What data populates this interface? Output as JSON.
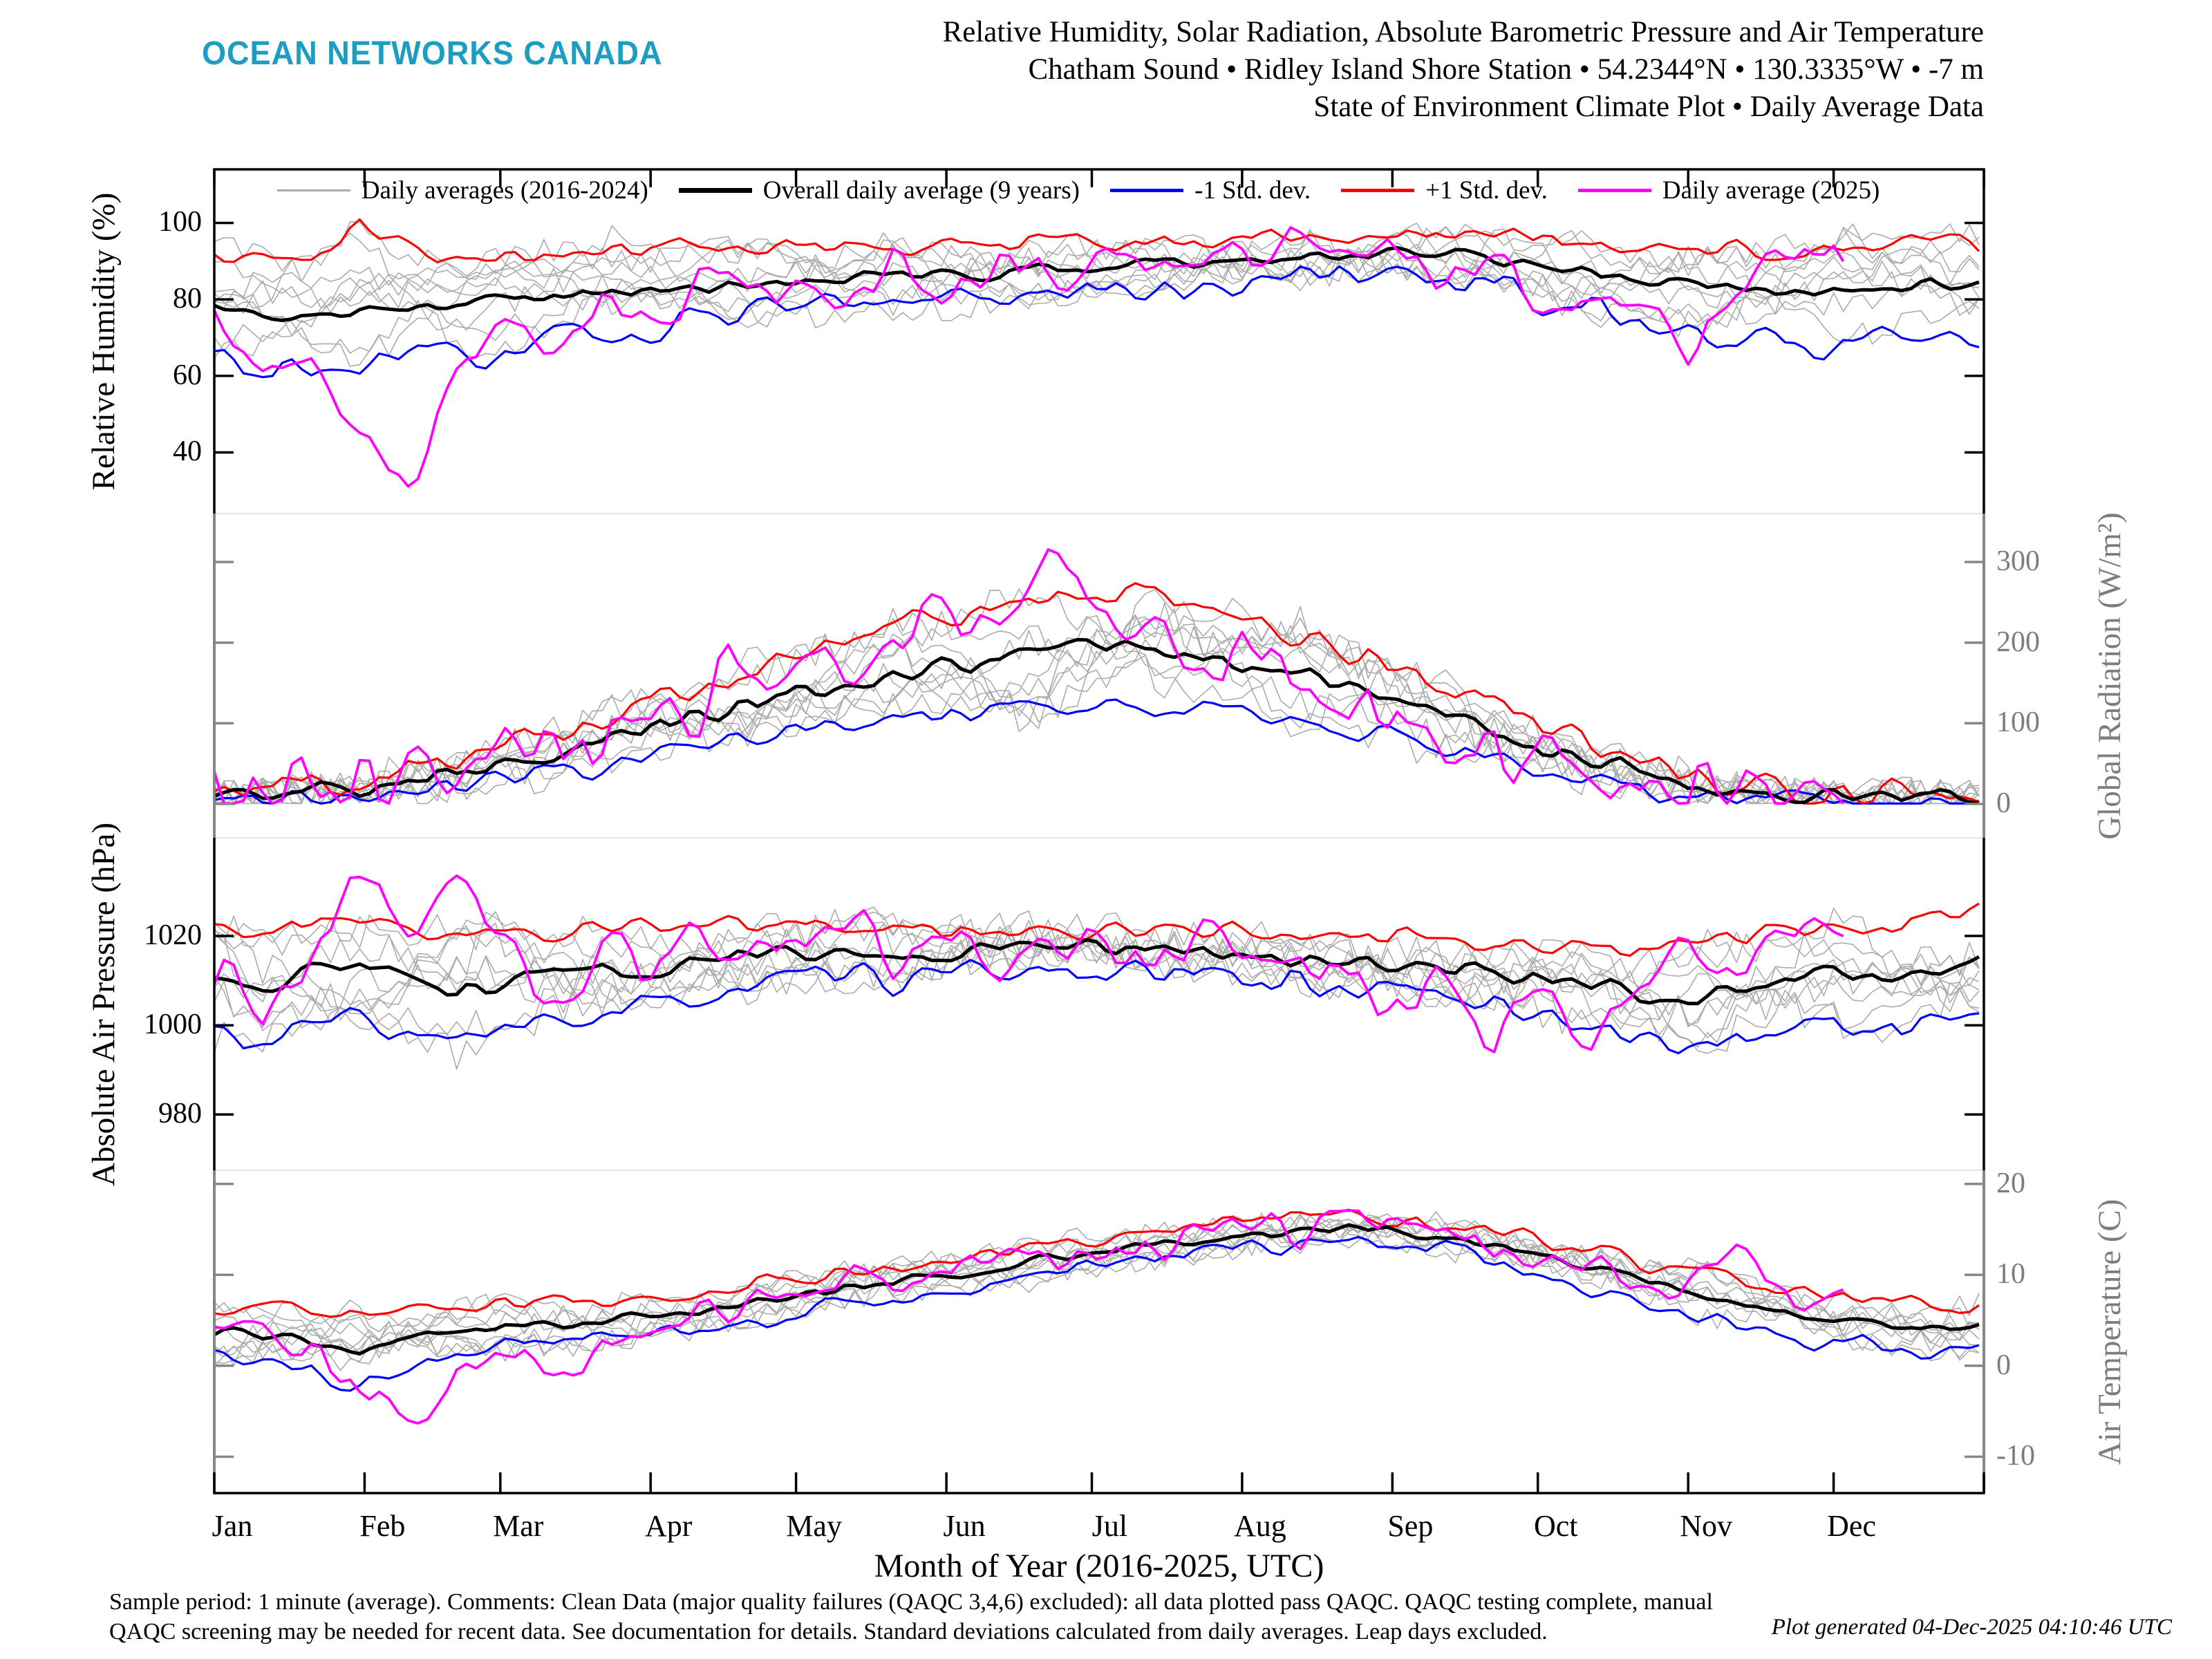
{
  "header": {
    "logo": "OCEAN NETWORKS CANADA",
    "logo_color": "#1d9dc1",
    "title_lines": [
      "Relative Humidity, Solar Radiation, Absolute Barometric Pressure and Air Temperature",
      "Chatham Sound • Ridley Island Shore Station • 54.2344°N • 130.3335°W • -7 m",
      "State of Environment Climate Plot • Daily Average Data"
    ]
  },
  "legend": {
    "items": [
      {
        "label": "Daily averages (2016-2024)",
        "color": "#ababab",
        "thickness": 3
      },
      {
        "label": "Overall daily average (9 years)",
        "color": "#000000",
        "thickness": 7
      },
      {
        "label": "-1 Std. dev.",
        "color": "#0000ff",
        "thickness": 5
      },
      {
        "label": "+1 Std. dev.",
        "color": "#ff0000",
        "thickness": 5
      },
      {
        "label": "Daily average (2025)",
        "color": "#ff00ff",
        "thickness": 5
      }
    ]
  },
  "xaxis": {
    "months": [
      "Jan",
      "Feb",
      "Mar",
      "Apr",
      "May",
      "Jun",
      "Jul",
      "Aug",
      "Sep",
      "Oct",
      "Nov",
      "Dec"
    ],
    "label": "Month of Year (2016-2025, UTC)"
  },
  "footer": {
    "line1": "Sample period: 1 minute (average). Comments: Clean Data (major quality failures (QAQC 3,4,6) excluded): all data plotted pass QAQC. QAQC testing complete, manual",
    "line2": "QAQC screening may be needed for recent data. See documentation for details. Standard deviations calculated from daily averages. Leap days excluded.",
    "generated": "Plot generated 04-Dec-2025 04:10:46 UTC"
  },
  "colors": {
    "axis_black": "#000000",
    "axis_gray": "#878787",
    "tick_label_gray": "#7d7d7d",
    "year_line_gray": "#ababab",
    "separator": "#e3e3e3"
  },
  "chart_data": [
    {
      "panel": "relative-humidity",
      "type": "line",
      "ylabel": "Relative Humidity (%)",
      "axis_side": "left",
      "axis_color": "#000000",
      "ylim": [
        24,
        114
      ],
      "yticks": [
        100,
        80,
        60,
        40
      ],
      "points_per_year": 37,
      "clamp": {
        "max": 100.3
      },
      "gray_years": {
        "label": "Daily averages (2016-2024)",
        "count": 9,
        "daily_noise": 3.5
      },
      "series": [
        {
          "role": "mean",
          "name": "Overall daily average (9 years)",
          "color": "#000000",
          "noise": 1.3,
          "values": [
            78,
            76,
            75,
            77,
            78,
            79,
            80,
            81,
            82,
            82,
            83,
            84,
            85,
            85,
            86,
            86,
            87,
            88,
            88,
            89,
            90,
            90,
            91,
            91,
            92,
            92,
            91,
            89,
            87,
            85,
            84,
            83,
            82,
            82,
            83,
            84,
            84
          ]
        },
        {
          "role": "minus1sd",
          "name": "-1 Std. dev.",
          "color": "#0000ff",
          "noise": 3.2,
          "values": [
            64,
            62,
            60,
            62,
            64,
            65,
            67,
            69,
            71,
            72,
            74,
            76,
            77,
            78,
            79,
            80,
            81,
            82,
            82,
            83,
            84,
            85,
            86,
            86,
            87,
            87,
            85,
            81,
            78,
            73,
            71,
            70,
            69,
            69,
            71,
            72,
            72
          ]
        },
        {
          "role": "plus1sd",
          "name": "+1 Std. dev.",
          "color": "#ff0000",
          "noise": 2.0,
          "values": [
            91,
            92,
            90,
            100,
            92,
            91,
            92,
            92,
            93,
            93,
            93,
            94,
            94,
            94,
            94,
            95,
            95,
            95,
            95,
            95,
            96,
            96,
            96,
            96,
            97,
            97,
            96,
            95,
            95,
            94,
            93,
            93,
            93,
            93,
            94,
            94,
            94
          ]
        },
        {
          "role": "current",
          "name": "Daily average (2025)",
          "color": "#ff00ff",
          "noise": 4.5,
          "end_fraction": 0.925,
          "values": [
            72,
            58,
            68,
            40,
            34,
            62,
            75,
            62,
            80,
            72,
            84,
            78,
            86,
            82,
            88,
            85,
            90,
            87,
            92,
            89,
            93,
            91,
            94,
            92,
            93,
            89,
            87,
            83,
            78,
            86,
            66,
            82,
            88,
            92,
            86,
            90,
            90
          ]
        }
      ]
    },
    {
      "panel": "global-radiation",
      "type": "line",
      "ylabel": "Global Radiation (W/m²)",
      "axis_side": "right",
      "axis_color": "#878787",
      "ylim": [
        -42,
        360
      ],
      "yticks": [
        300,
        200,
        100,
        0
      ],
      "points_per_year": 37,
      "clamp": {
        "min": 0.5
      },
      "gray_years": {
        "label": "Daily averages (2016-2024)",
        "count": 9,
        "daily_noise": 22
      },
      "series": [
        {
          "role": "mean",
          "name": "Overall daily average (9 years)",
          "color": "#000000",
          "noise": 9,
          "values": [
            10,
            12,
            15,
            20,
            28,
            38,
            50,
            62,
            78,
            95,
            110,
            125,
            140,
            150,
            160,
            170,
            180,
            190,
            195,
            190,
            180,
            170,
            158,
            145,
            128,
            108,
            88,
            68,
            52,
            38,
            26,
            18,
            12,
            9,
            8,
            8,
            8
          ]
        },
        {
          "role": "minus1sd",
          "name": "-1 Std. dev.",
          "color": "#0000ff",
          "noise": 10,
          "values": [
            5,
            6,
            8,
            11,
            15,
            22,
            30,
            38,
            48,
            60,
            72,
            82,
            95,
            100,
            105,
            112,
            118,
            125,
            128,
            125,
            118,
            112,
            104,
            95,
            84,
            68,
            55,
            42,
            32,
            22,
            15,
            10,
            7,
            5,
            4,
            4,
            4
          ]
        },
        {
          "role": "plus1sd",
          "name": "+1 Std. dev.",
          "color": "#ff0000",
          "noise": 14,
          "values": [
            14,
            17,
            22,
            30,
            42,
            55,
            72,
            88,
            108,
            128,
            148,
            168,
            188,
            205,
            218,
            232,
            245,
            258,
            262,
            255,
            242,
            228,
            212,
            195,
            172,
            148,
            120,
            95,
            72,
            52,
            36,
            25,
            17,
            13,
            11,
            11,
            11
          ]
        },
        {
          "role": "current",
          "name": "Daily average (2025)",
          "color": "#ff00ff",
          "noise": 38,
          "end_fraction": 0.925,
          "values": [
            11,
            13,
            17,
            25,
            35,
            45,
            60,
            75,
            95,
            115,
            135,
            155,
            175,
            190,
            205,
            220,
            240,
            265,
            240,
            230,
            210,
            190,
            168,
            148,
            122,
            98,
            76,
            56,
            40,
            28,
            18,
            12,
            9,
            7,
            7,
            7,
            7
          ]
        }
      ]
    },
    {
      "panel": "absolute-air-pressure",
      "type": "line",
      "ylabel": "Absolute Air Pressure (hPa)",
      "axis_side": "left",
      "axis_color": "#000000",
      "ylim": [
        967.5,
        1042
      ],
      "yticks": [
        1020,
        1000,
        980
      ],
      "points_per_year": 37,
      "gray_years": {
        "label": "Daily averages (2016-2024)",
        "count": 9,
        "daily_noise": 4
      },
      "series": [
        {
          "role": "mean",
          "name": "Overall daily average (9 years)",
          "color": "#000000",
          "noise": 1.6,
          "values": [
            1011,
            1008,
            1012,
            1013,
            1010,
            1008,
            1009,
            1011,
            1012,
            1013,
            1015,
            1016,
            1016,
            1017,
            1016,
            1016,
            1017,
            1017,
            1017,
            1016,
            1016,
            1016,
            1015,
            1014,
            1014,
            1013,
            1012,
            1011,
            1009,
            1007,
            1006,
            1008,
            1010,
            1012,
            1010,
            1013,
            1014
          ]
        },
        {
          "role": "minus1sd",
          "name": "-1 Std. dev.",
          "color": "#0000ff",
          "noise": 2.2,
          "values": [
            999,
            995,
            1000,
            1002,
            998,
            996,
            998,
            1001,
            1002,
            1004,
            1007,
            1009,
            1010,
            1011,
            1010,
            1011,
            1012,
            1012,
            1012,
            1011,
            1011,
            1011,
            1010,
            1008,
            1008,
            1007,
            1005,
            1003,
            1000,
            997,
            995,
            997,
            999,
            1001,
            998,
            1002,
            1003
          ]
        },
        {
          "role": "plus1sd",
          "name": "+1 Std. dev.",
          "color": "#ff0000",
          "noise": 1.8,
          "values": [
            1023,
            1021,
            1024,
            1024,
            1022,
            1020,
            1020,
            1021,
            1022,
            1022,
            1023,
            1023,
            1022,
            1023,
            1022,
            1021,
            1022,
            1022,
            1022,
            1021,
            1021,
            1021,
            1020,
            1020,
            1020,
            1019,
            1019,
            1019,
            1018,
            1017,
            1017,
            1019,
            1021,
            1023,
            1022,
            1024,
            1025
          ]
        },
        {
          "role": "current",
          "name": "Daily average (2025)",
          "color": "#ff00ff",
          "noise": 4.5,
          "end_fraction": 0.925,
          "values": [
            1013,
            1006,
            1018,
            1032,
            1024,
            1034,
            1015,
            1008,
            1016,
            1012,
            1019,
            1016,
            1018,
            1021,
            1015,
            1018,
            1016,
            1020,
            1018,
            1015,
            1018,
            1017,
            1014,
            1010,
            1002,
            1012,
            996,
            1010,
            993,
            1012,
            1018,
            1012,
            1020,
            1024,
            1019,
            1023,
            1023
          ]
        }
      ]
    },
    {
      "panel": "air-temperature",
      "type": "line",
      "ylabel": "Air Temperature (C)",
      "axis_side": "right",
      "axis_color": "#878787",
      "ylim": [
        -14,
        21.5
      ],
      "yticks": [
        20,
        10,
        0,
        -10
      ],
      "points_per_year": 37,
      "gray_years": {
        "label": "Daily averages (2016-2024)",
        "count": 9,
        "daily_noise": 1.3
      },
      "series": [
        {
          "role": "mean",
          "name": "Overall daily average (9 years)",
          "color": "#000000",
          "noise": 0.45,
          "values": [
            3.8,
            3.4,
            2.8,
            1.6,
            3.2,
            3.9,
            4.3,
            4.6,
            5.0,
            5.6,
            6.3,
            7.0,
            7.8,
            8.5,
            9.2,
            10.0,
            10.8,
            11.6,
            12.4,
            13.2,
            13.8,
            14.3,
            14.7,
            15.0,
            14.8,
            14.2,
            13.4,
            12.2,
            10.8,
            9.4,
            8.2,
            7.0,
            6.0,
            5.2,
            4.6,
            4.2,
            4.0
          ]
        },
        {
          "role": "minus1sd",
          "name": "-1 Std. dev.",
          "color": "#0000ff",
          "noise": 0.8,
          "values": [
            1.3,
            0.6,
            -0.4,
            -2.2,
            0.4,
            1.4,
            1.9,
            2.3,
            2.8,
            3.5,
            4.3,
            5.0,
            5.9,
            6.6,
            7.4,
            8.2,
            9.1,
            9.9,
            10.8,
            11.6,
            12.3,
            12.8,
            13.2,
            13.5,
            13.3,
            12.6,
            11.7,
            10.4,
            8.8,
            7.3,
            6.0,
            4.7,
            3.6,
            2.7,
            2.0,
            1.6,
            1.4
          ]
        },
        {
          "role": "plus1sd",
          "name": "+1 Std. dev.",
          "color": "#ff0000",
          "noise": 0.7,
          "values": [
            6.3,
            6.2,
            6.0,
            5.4,
            6.0,
            6.4,
            6.7,
            6.9,
            7.2,
            7.7,
            8.3,
            9.0,
            9.7,
            10.4,
            11.0,
            11.8,
            12.5,
            13.3,
            14.0,
            14.8,
            15.3,
            15.8,
            16.2,
            16.5,
            16.3,
            15.8,
            15.1,
            14.0,
            12.8,
            11.5,
            10.4,
            9.3,
            8.4,
            7.7,
            7.2,
            6.8,
            6.6
          ]
        },
        {
          "role": "current",
          "name": "Daily average (2025)",
          "color": "#ff00ff",
          "noise": 1.6,
          "end_fraction": 0.925,
          "values": [
            3.5,
            4.5,
            2.0,
            -2.0,
            -6.5,
            1.0,
            3.0,
            -3.5,
            2.5,
            4.5,
            5.5,
            6.8,
            7.5,
            8.8,
            9.0,
            10.2,
            11.0,
            11.8,
            12.6,
            13.4,
            14.0,
            14.5,
            14.8,
            15.2,
            14.9,
            14.4,
            13.6,
            12.4,
            11.2,
            10.0,
            8.8,
            13.0,
            8.0,
            6.4,
            8.6,
            7.0,
            7.0
          ]
        }
      ]
    }
  ]
}
